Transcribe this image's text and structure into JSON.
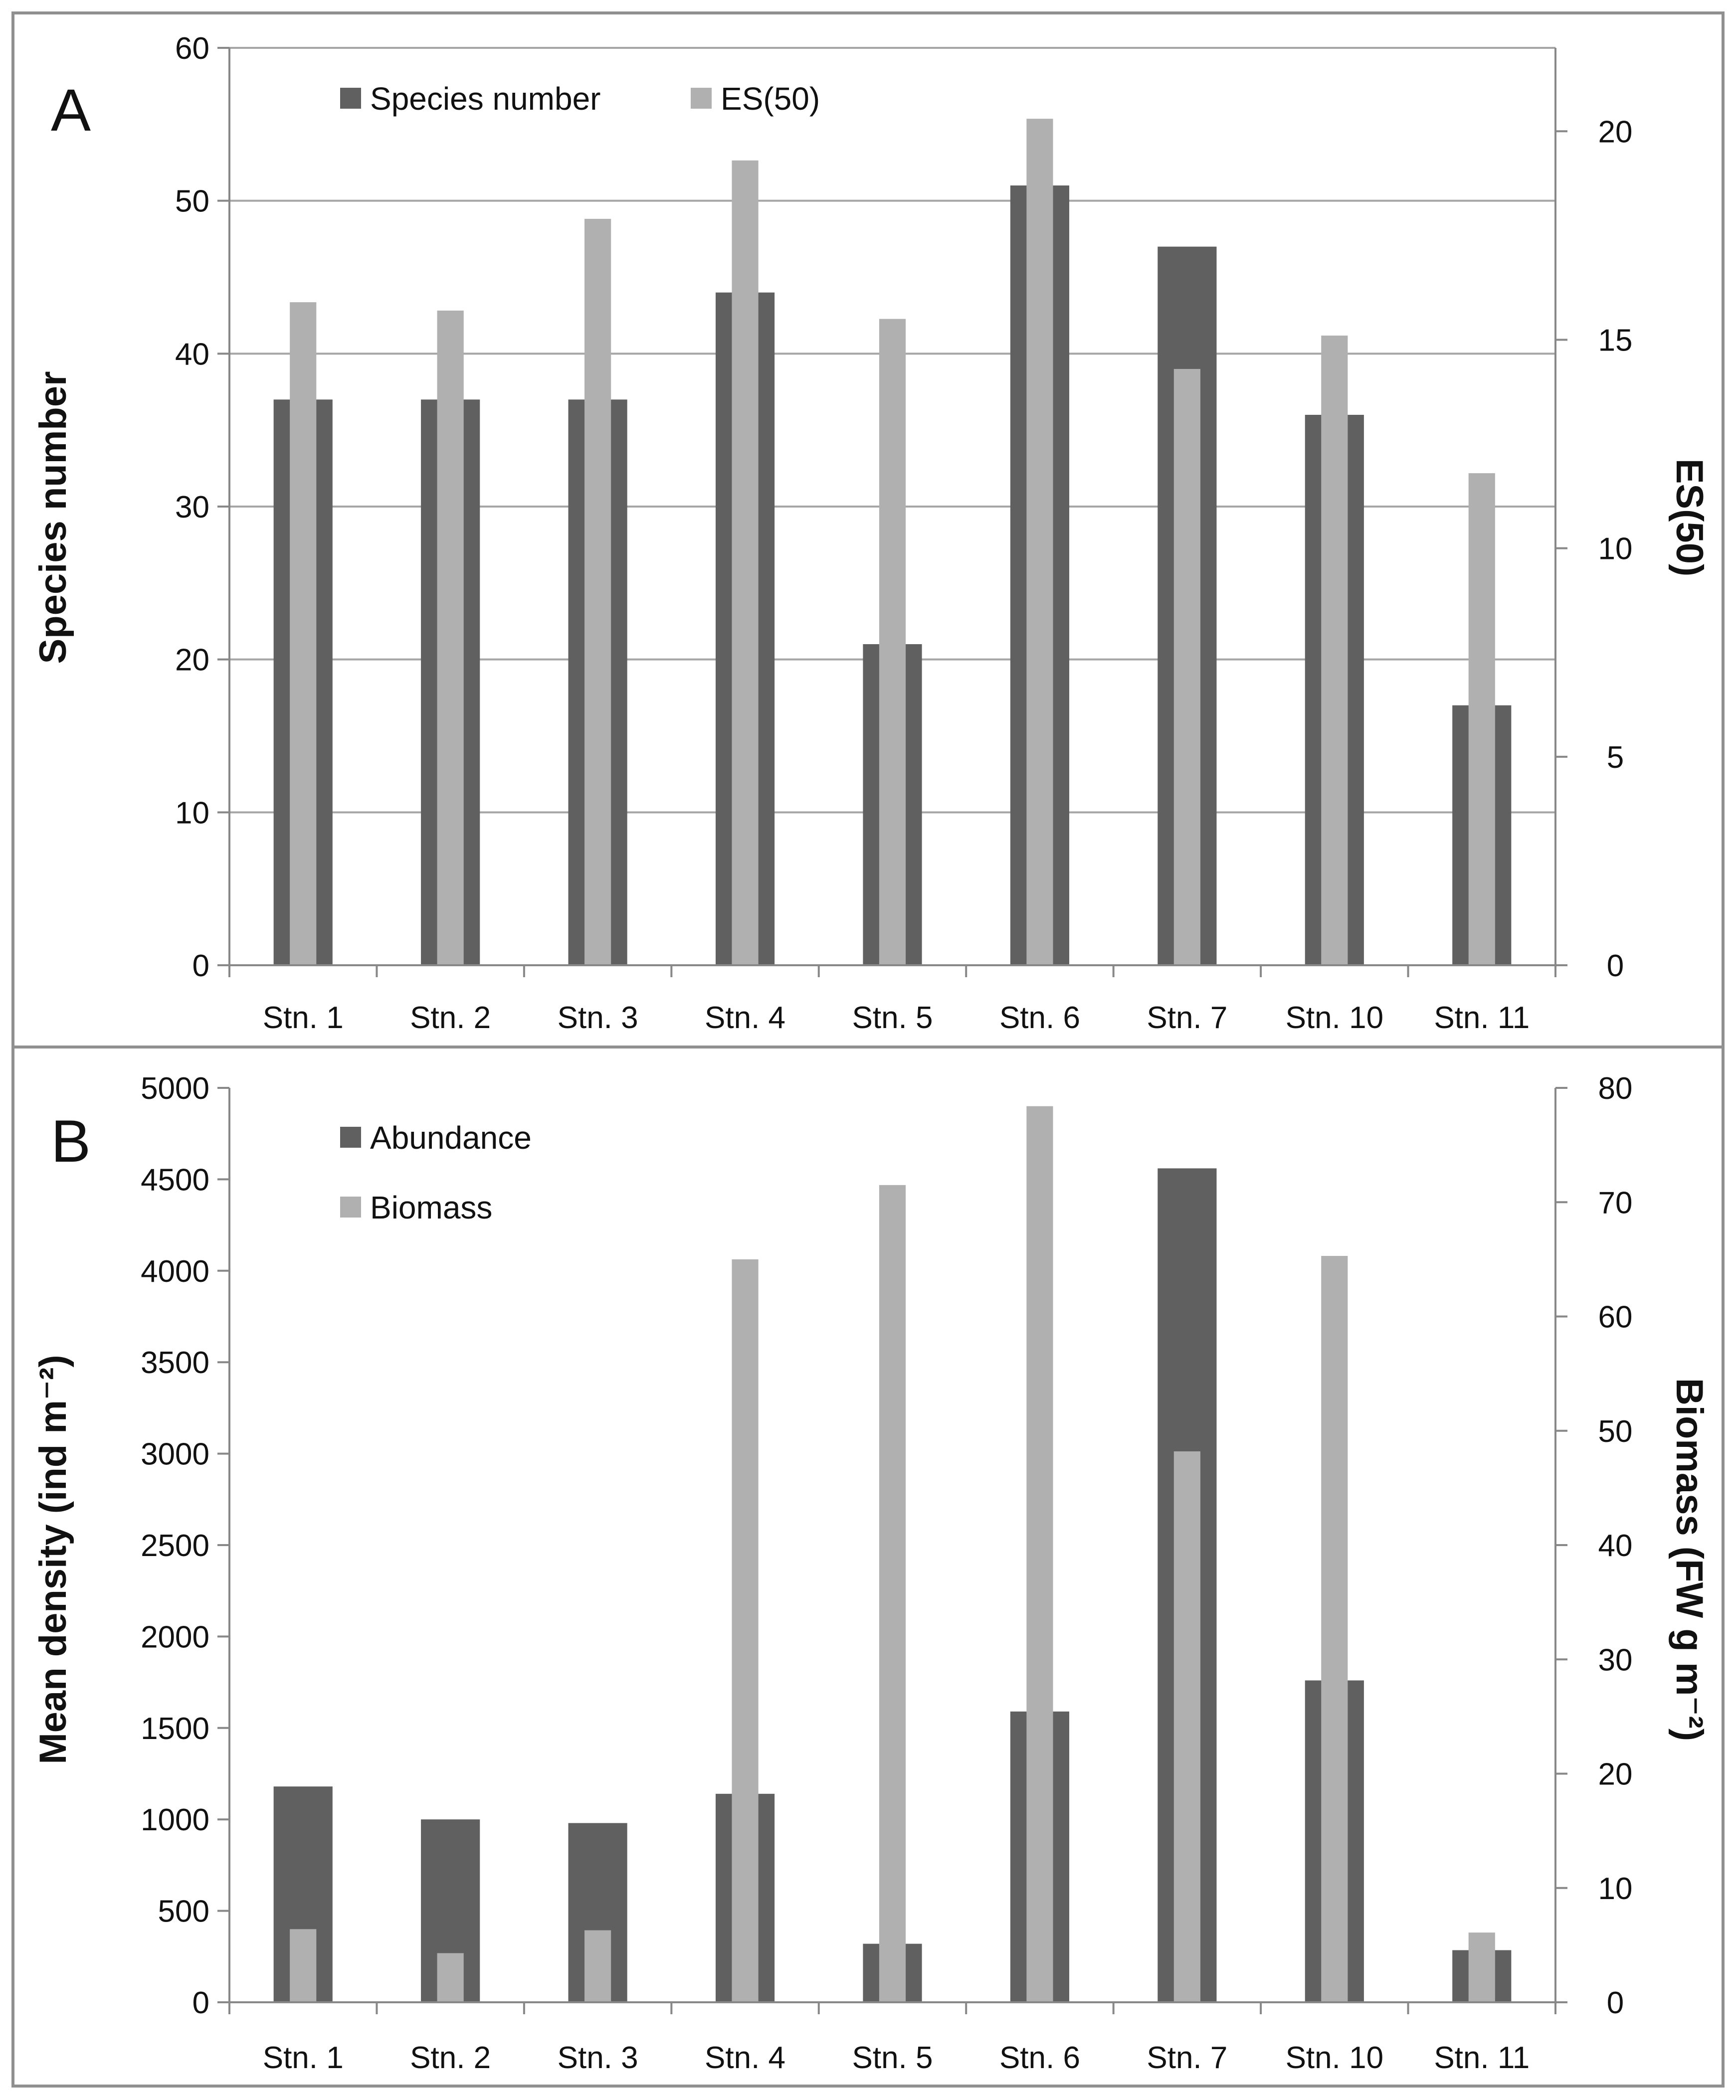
{
  "colors": {
    "dark_bar": "#606060",
    "light_bar": "#b0b0b0",
    "grid": "#a6a6a6",
    "frame": "#909090"
  },
  "chart_data": [
    {
      "panel": "A",
      "type": "bar",
      "categories": [
        "Stn. 1",
        "Stn. 2",
        "Stn. 3",
        "Stn. 4",
        "Stn. 5",
        "Stn. 6",
        "Stn. 7",
        "Stn. 10",
        "Stn. 11"
      ],
      "series": [
        {
          "name": "Species number",
          "axis": "left",
          "color": "dark",
          "values": [
            37,
            37,
            37,
            44,
            21,
            51,
            47,
            36,
            17
          ]
        },
        {
          "name": "ES(50)",
          "axis": "right",
          "color": "light",
          "values": [
            15.9,
            15.7,
            17.9,
            19.3,
            15.5,
            20.3,
            14.3,
            15.1,
            11.8
          ]
        }
      ],
      "ylabel": "Species number",
      "y2label": "ES(50)",
      "ylim": [
        0,
        60
      ],
      "yticks": [
        0,
        10,
        20,
        30,
        40,
        50,
        60
      ],
      "y2lim": [
        0,
        22
      ],
      "y2ticks": [
        0,
        5,
        10,
        15,
        20
      ],
      "legend": "top-left",
      "grid": true
    },
    {
      "panel": "B",
      "type": "bar",
      "categories": [
        "Stn. 1",
        "Stn. 2",
        "Stn. 3",
        "Stn. 4",
        "Stn. 5",
        "Stn. 6",
        "Stn. 7",
        "Stn. 10",
        "Stn. 11"
      ],
      "series": [
        {
          "name": "Abundance",
          "axis": "left",
          "color": "dark",
          "values": [
            1180,
            1000,
            980,
            1140,
            320,
            1590,
            4560,
            1760,
            285
          ]
        },
        {
          "name": "Biomass",
          "axis": "right",
          "color": "light",
          "values": [
            6.4,
            4.3,
            6.3,
            65.0,
            71.5,
            78.4,
            48.2,
            65.3,
            6.1
          ]
        }
      ],
      "ylabel": "Mean density (ind m⁻²)",
      "y2label": "Biomass (FW g m⁻²)",
      "ylim": [
        0,
        5000
      ],
      "yticks": [
        0,
        500,
        1000,
        1500,
        2000,
        2500,
        3000,
        3500,
        4000,
        4500,
        5000
      ],
      "y2lim": [
        0,
        80
      ],
      "y2ticks": [
        0,
        10,
        20,
        30,
        40,
        50,
        60,
        70,
        80
      ],
      "legend": "top-left",
      "grid": false
    }
  ]
}
